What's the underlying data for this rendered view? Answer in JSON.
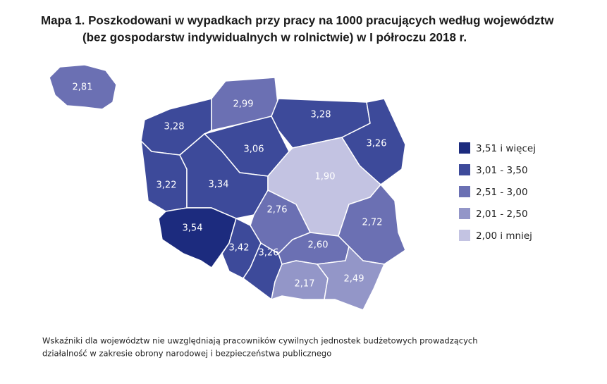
{
  "title": {
    "line1": "Mapa 1. Poszkodowani w wypadkach przy pracy na 1000 pracujących według województw",
    "line2": "(bez gospodarstw indywidualnych w rolnictwie) w I półroczu 2018 r."
  },
  "map": {
    "regions": [
      {
        "label": "2,81",
        "color": "#6b70b3"
      },
      {
        "label": "3,28",
        "color": "#3d4a9a"
      },
      {
        "label": "2,99",
        "color": "#6b70b3"
      },
      {
        "label": "3,28",
        "color": "#3d4a9a"
      },
      {
        "label": "3,26",
        "color": "#3d4a9a"
      },
      {
        "label": "3,22",
        "color": "#3d4a9a"
      },
      {
        "label": "3,06",
        "color": "#3d4a9a"
      },
      {
        "label": "3,34",
        "color": "#3d4a9a"
      },
      {
        "label": "1,90",
        "color": "#c3c3e2"
      },
      {
        "label": "2,76",
        "color": "#6b70b3"
      },
      {
        "label": "2,72",
        "color": "#6b70b3"
      },
      {
        "label": "3,54",
        "color": "#1c2b7e"
      },
      {
        "label": "3,42",
        "color": "#3d4a9a"
      },
      {
        "label": "3,26",
        "color": "#3d4a9a"
      },
      {
        "label": "2,60",
        "color": "#6b70b3"
      },
      {
        "label": "2,17",
        "color": "#9396c8"
      },
      {
        "label": "2,49",
        "color": "#9396c8"
      }
    ]
  },
  "legend": {
    "items": [
      {
        "label": "3,51 i więcej",
        "color": "#1c2b7e"
      },
      {
        "label": "3,01 - 3,50",
        "color": "#3d4a9a"
      },
      {
        "label": "2,51 - 3,00",
        "color": "#6b70b3"
      },
      {
        "label": "2,01 - 2,50",
        "color": "#9396c8"
      },
      {
        "label": "2,00 i mniej",
        "color": "#c3c3e2"
      }
    ]
  },
  "footnote": {
    "line1": "Wskaźniki dla województw nie uwzględniają pracowników cywilnych jednostek budżetowych prowadzących",
    "line2": "działalność w zakresie obrony narodowej i bezpieczeństwa publicznego"
  }
}
